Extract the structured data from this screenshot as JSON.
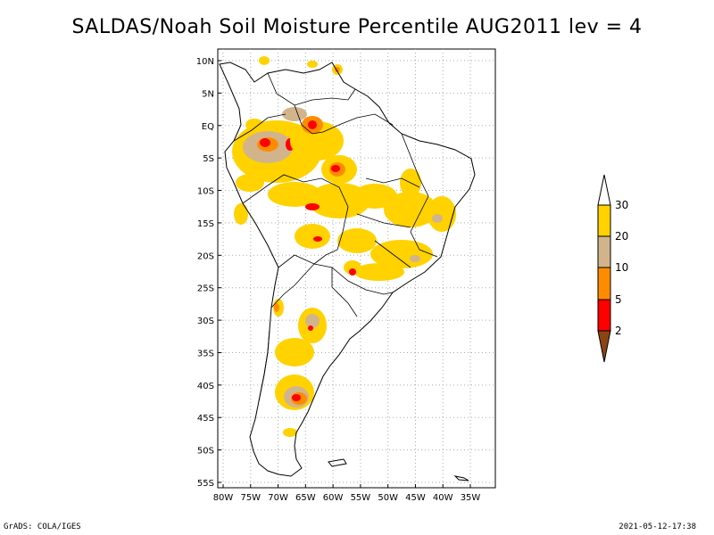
{
  "title": "SALDAS/Noah Soil Moisture Percentile AUG2011 lev = 4",
  "map": {
    "lat_labels": [
      "10N",
      "5N",
      "EQ",
      "5S",
      "10S",
      "15S",
      "20S",
      "25S",
      "30S",
      "35S",
      "40S",
      "45S",
      "50S",
      "55S"
    ],
    "lon_labels": [
      "80W",
      "75W",
      "70W",
      "65W",
      "60W",
      "55W",
      "50W",
      "45W",
      "40W",
      "35W"
    ],
    "region": "South America",
    "lon_range": [
      -80,
      -33
    ],
    "lat_range": [
      12,
      -56
    ]
  },
  "colorbar": {
    "ticks": [
      "30",
      "20",
      "10",
      "5",
      "2"
    ],
    "colors": {
      "above_30": "#ffffff",
      "20_30": "#ffd200",
      "10_20": "#d2b48c",
      "5_10": "#ff8c00",
      "2_5": "#ff0000",
      "below_2": "#8b4513"
    }
  },
  "footer": {
    "left": "GrADS: COLA/IGES",
    "right": "2021-05-12-17:38"
  }
}
